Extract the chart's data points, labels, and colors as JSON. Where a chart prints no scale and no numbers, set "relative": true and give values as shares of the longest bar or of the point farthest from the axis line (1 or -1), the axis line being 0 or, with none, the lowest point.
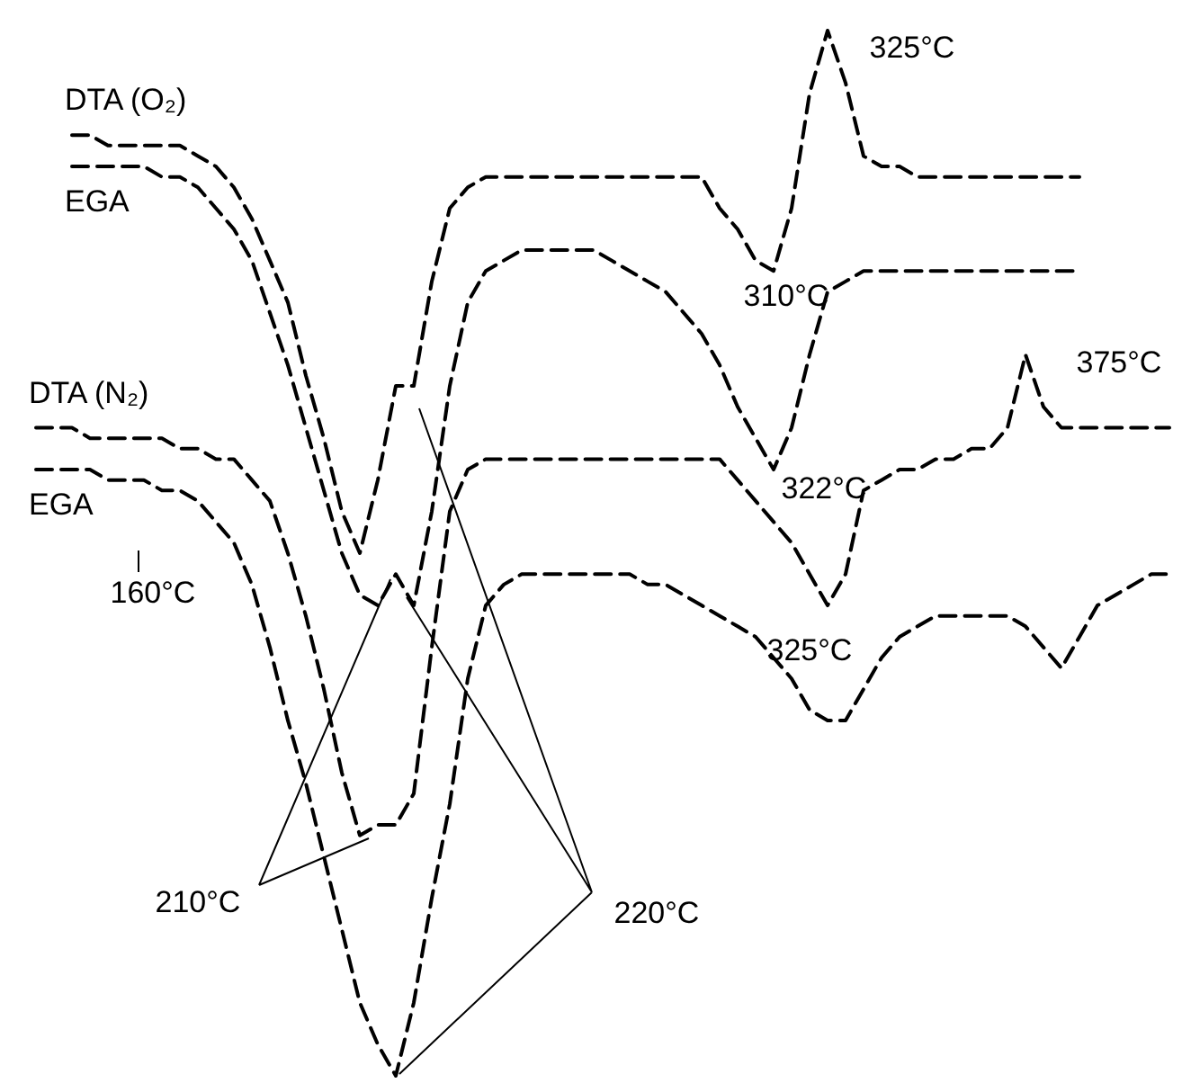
{
  "chart_data": {
    "type": "line",
    "relative": true,
    "marker": "none",
    "line_style": "dashed",
    "categories": [
      null,
      null,
      null,
      null,
      null,
      null,
      null,
      null,
      null,
      null,
      null,
      null,
      null,
      null,
      null,
      null,
      null,
      null,
      null,
      null,
      null,
      null,
      null,
      null,
      null,
      null,
      null,
      null,
      null,
      null,
      null,
      null,
      null,
      null,
      null,
      null,
      null,
      null,
      null,
      null,
      null,
      null,
      null,
      null,
      null,
      null,
      null,
      null,
      null,
      null,
      null,
      null,
      null,
      null,
      null,
      null,
      null,
      null,
      null,
      null,
      null,
      null,
      null,
      null
    ],
    "series": [
      {
        "name": "DTA (O₂)",
        "color": "#000000",
        "values": [
          null,
          null,
          0.9,
          0.9,
          0.89,
          0.89,
          0.89,
          0.89,
          0.89,
          0.88,
          0.87,
          0.85,
          0.82,
          0.78,
          0.74,
          0.67,
          0.61,
          0.54,
          0.5,
          0.57,
          0.66,
          0.66,
          0.76,
          0.83,
          0.85,
          0.86,
          0.86,
          0.86,
          0.86,
          0.86,
          0.86,
          0.86,
          0.86,
          0.86,
          0.86,
          0.86,
          0.86,
          0.86,
          0.83,
          0.81,
          0.78,
          0.77,
          0.83,
          0.94,
          1,
          0.95,
          0.88,
          0.87,
          0.87,
          0.86,
          0.86,
          0.86,
          0.86,
          0.86,
          0.86,
          0.86,
          0.86,
          0.86,
          0.86,
          null,
          null,
          null,
          null,
          null
        ]
      },
      {
        "name": "EGA",
        "color": "#000000",
        "values": [
          null,
          null,
          0.87,
          0.87,
          0.87,
          0.87,
          0.87,
          0.86,
          0.86,
          0.85,
          0.83,
          0.81,
          0.78,
          0.73,
          0.68,
          0.62,
          0.56,
          0.5,
          0.46,
          0.45,
          0.48,
          0.45,
          0.54,
          0.66,
          0.74,
          0.77,
          0.78,
          0.79,
          0.79,
          0.79,
          0.79,
          0.79,
          0.78,
          0.77,
          0.76,
          0.75,
          0.73,
          0.71,
          0.68,
          0.64,
          0.61,
          0.58,
          0.62,
          0.69,
          0.75,
          0.76,
          0.77,
          0.77,
          0.77,
          0.77,
          0.77,
          0.77,
          0.77,
          0.77,
          0.77,
          0.77,
          0.77,
          0.77,
          0.77,
          null,
          null,
          null,
          null,
          null
        ]
      },
      {
        "name": "DTA (N₂)",
        "color": "#000000",
        "values": [
          0.62,
          0.62,
          0.62,
          0.61,
          0.61,
          0.61,
          0.61,
          0.61,
          0.6,
          0.6,
          0.59,
          0.59,
          0.57,
          0.55,
          0.5,
          0.44,
          0.37,
          0.29,
          0.23,
          0.24,
          0.24,
          0.27,
          0.41,
          0.54,
          0.58,
          0.59,
          0.59,
          0.59,
          0.59,
          0.59,
          0.59,
          0.59,
          0.59,
          0.59,
          0.59,
          0.59,
          0.59,
          0.59,
          0.59,
          0.57,
          0.55,
          0.53,
          0.51,
          0.48,
          0.45,
          0.48,
          0.56,
          0.57,
          0.58,
          0.58,
          0.59,
          0.59,
          0.6,
          0.6,
          0.62,
          0.69,
          0.64,
          0.62,
          0.62,
          0.62,
          0.62,
          0.62,
          0.62,
          0.62
        ]
      },
      {
        "name": "EGA",
        "color": "#000000",
        "values": [
          0.58,
          0.58,
          0.58,
          0.58,
          0.57,
          0.57,
          0.57,
          0.56,
          0.56,
          0.55,
          0.53,
          0.51,
          0.47,
          0.41,
          0.34,
          0.28,
          0.21,
          0.14,
          0.07,
          0.03,
          0,
          0.07,
          0.17,
          0.26,
          0.38,
          0.45,
          0.47,
          0.48,
          0.48,
          0.48,
          0.48,
          0.48,
          0.48,
          0.48,
          0.47,
          0.47,
          0.46,
          0.45,
          0.44,
          0.43,
          0.42,
          0.4,
          0.38,
          0.35,
          0.34,
          0.34,
          0.37,
          0.4,
          0.42,
          0.43,
          0.44,
          0.44,
          0.44,
          0.44,
          0.44,
          0.43,
          0.41,
          0.39,
          0.42,
          0.45,
          0.46,
          0.47,
          0.48,
          0.48
        ]
      }
    ],
    "annotations": [
      "325°C",
      "310°C",
      "375°C",
      "322°C",
      "160°C",
      "325°C",
      "210°C",
      "220°C"
    ]
  }
}
